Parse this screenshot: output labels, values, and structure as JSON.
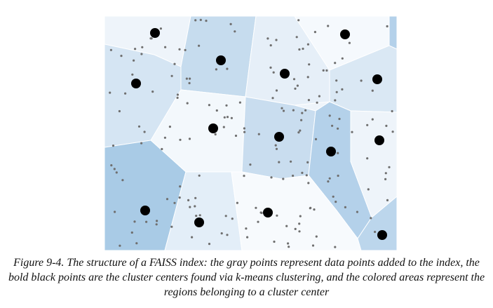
{
  "figure": {
    "caption": "Figure 9-4. The structure of a FAISS index: the gray points represent data points added to the index, the bold black points are the cluster centers found via k-means clustering, and the colored areas represent the regions belonging to a cluster center"
  }
}
